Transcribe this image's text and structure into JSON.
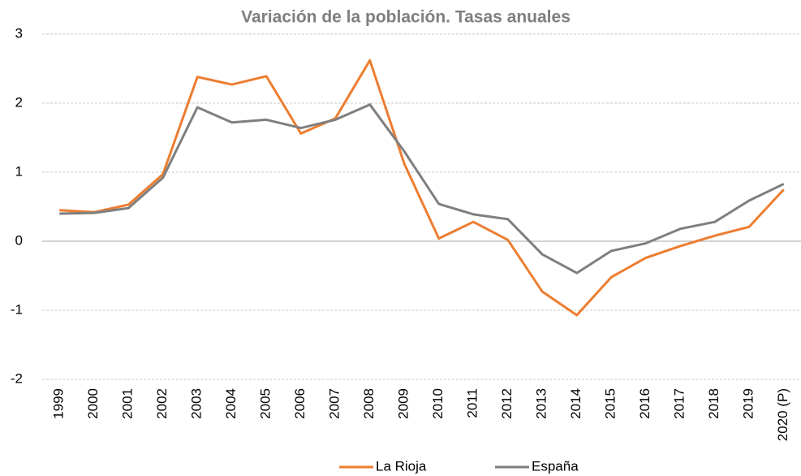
{
  "chart_data": {
    "type": "line",
    "title": "Variación de la población. Tasas anuales",
    "categories": [
      "1999",
      "2000",
      "2001",
      "2002",
      "2003",
      "2004",
      "2005",
      "2006",
      "2007",
      "2008",
      "2009",
      "2010",
      "2011",
      "2012",
      "2013",
      "2014",
      "2015",
      "2016",
      "2017",
      "2018",
      "2019",
      "2020 (P)"
    ],
    "series": [
      {
        "name": "La Rioja",
        "color": "#ed7d31",
        "values": [
          0.45,
          0.42,
          0.53,
          0.97,
          2.38,
          2.27,
          2.39,
          1.56,
          1.78,
          2.62,
          1.12,
          0.04,
          0.28,
          0.02,
          -0.73,
          -1.07,
          -0.52,
          -0.24,
          -0.07,
          0.08,
          0.21,
          0.75
        ]
      },
      {
        "name": "España",
        "color": "#7f7f7f",
        "values": [
          0.4,
          0.41,
          0.48,
          0.92,
          1.94,
          1.72,
          1.76,
          1.64,
          1.76,
          1.98,
          1.3,
          0.54,
          0.39,
          0.32,
          -0.19,
          -0.46,
          -0.14,
          -0.03,
          0.18,
          0.28,
          0.59,
          0.83
        ]
      }
    ],
    "ylim": [
      -2,
      3
    ],
    "yticks": [
      -2,
      -1,
      0,
      1,
      2,
      3
    ],
    "grid": true,
    "legend": "bottom"
  }
}
